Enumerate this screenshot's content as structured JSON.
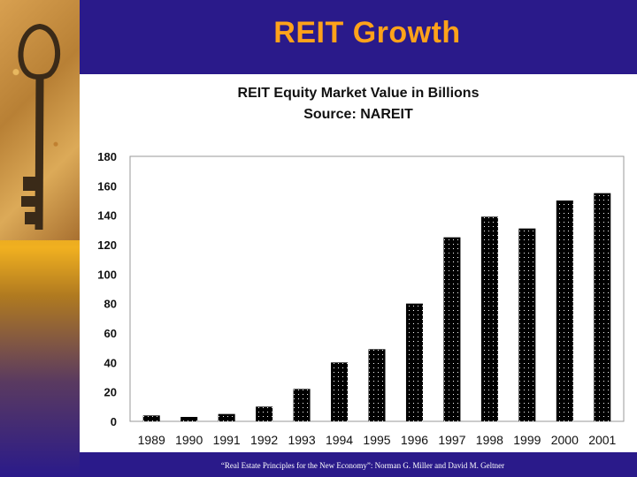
{
  "slide": {
    "title": "REIT Growth",
    "credit": "“Real Estate Principles for the New Economy”: Norman G. Miller and David M. Geltner"
  },
  "colors": {
    "background": "#2a1a8a",
    "title": "#ffa21a",
    "bar": "#000000",
    "bar_dots": "#ffffff"
  },
  "icons": {
    "side_image": "key-icon"
  },
  "chart_data": {
    "type": "bar",
    "title": "REIT Equity Market Value in Billions",
    "subtitle": "Source: NAREIT",
    "xlabel": "",
    "ylabel": "",
    "ylim": [
      0,
      180
    ],
    "yticks": [
      "0",
      "20",
      "40",
      "60",
      "80",
      "100",
      "120",
      "140",
      "160",
      "180"
    ],
    "categories": [
      "1989",
      "1990",
      "1991",
      "1992",
      "1993",
      "1994",
      "1995",
      "1996",
      "1997",
      "1998",
      "1999",
      "2000",
      "2001"
    ],
    "values": [
      4,
      3,
      5,
      10,
      22,
      40,
      49,
      80,
      125,
      139,
      131,
      150,
      155
    ],
    "grid": false,
    "legend": "none"
  }
}
